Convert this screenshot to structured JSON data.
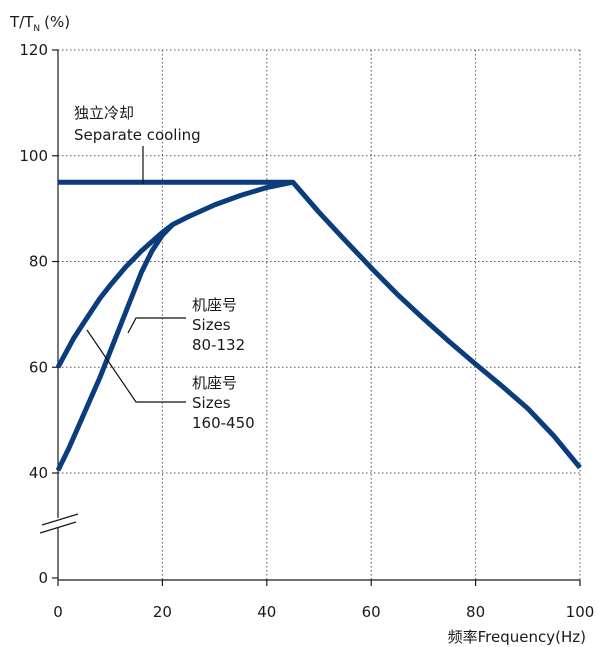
{
  "chart_data": {
    "type": "line",
    "ylabel": "T/T",
    "ylabel_sub": "N",
    "ylabel_unit": "(%)",
    "xlabel": "频率Frequency(Hz)",
    "xlim": [
      0,
      100
    ],
    "ylim": [
      0,
      120
    ],
    "axis_break": "between 0 and 40 on y-axis",
    "grid": true,
    "x_ticks": [
      0,
      20,
      40,
      60,
      80,
      100
    ],
    "y_ticks": [
      0,
      40,
      60,
      80,
      100,
      120
    ],
    "curve_color": "#0b3c7d",
    "series": [
      {
        "name": "独立冷却 Separate cooling",
        "x": [
          0,
          45,
          50,
          55,
          60,
          65,
          70,
          75,
          80,
          85,
          90,
          95,
          100
        ],
        "y": [
          95,
          95,
          89.3,
          84.0,
          78.8,
          73.8,
          69.2,
          64.8,
          60.6,
          56.5,
          52.2,
          47.0,
          41.0
        ]
      },
      {
        "name": "机座号 Sizes 80-132",
        "x": [
          0,
          3,
          5,
          8,
          10,
          13,
          16,
          20,
          22,
          25,
          30,
          35,
          40,
          45
        ],
        "y": [
          60,
          65.5,
          68.5,
          73,
          75.5,
          79,
          82,
          85.5,
          87,
          88.5,
          90.7,
          92.5,
          94,
          95
        ]
      },
      {
        "name": "机座号 Sizes 160-450",
        "x": [
          0,
          2,
          4,
          6,
          8,
          10,
          12,
          14,
          16,
          18,
          20,
          22
        ],
        "y": [
          40.5,
          44.5,
          49,
          53.5,
          58,
          63,
          68,
          73,
          78,
          82,
          85,
          87
        ]
      }
    ],
    "annotations": [
      {
        "id": "separate",
        "lines": [
          "独立冷却",
          "Separate cooling"
        ]
      },
      {
        "id": "sizes_small",
        "lines": [
          "机座号",
          "Sizes",
          "80-132"
        ]
      },
      {
        "id": "sizes_large",
        "lines": [
          "机座号",
          "Sizes",
          "160-450"
        ]
      }
    ]
  }
}
